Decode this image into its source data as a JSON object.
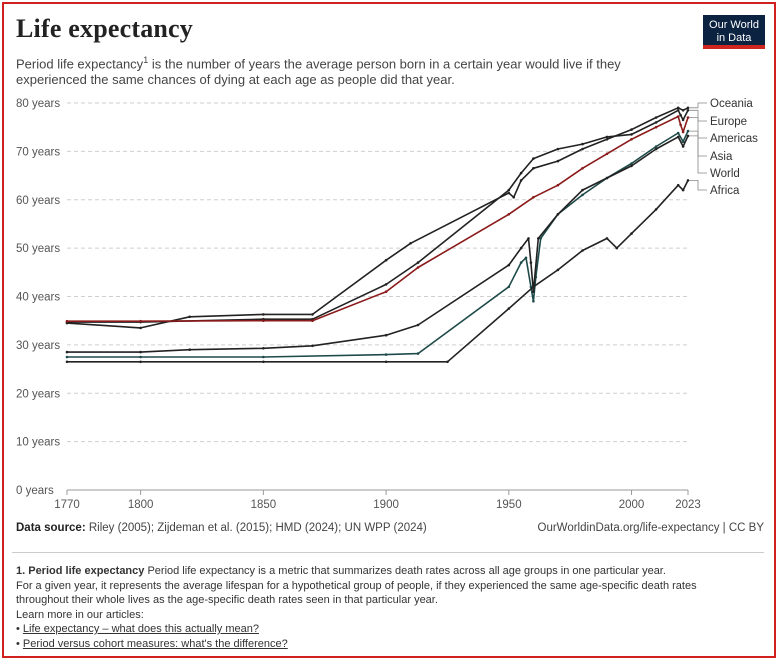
{
  "header": {
    "title": "Life expectancy",
    "subtitle_main": "Period life expectancy",
    "subtitle_mark": "1",
    "subtitle_rest": " is the number of years the average person born in a certain year would live if they experienced the same chances of dying at each age as people did that year.",
    "logo_line1": "Our World",
    "logo_line2": "in Data"
  },
  "footer": {
    "source_label": "Data source:",
    "source_text": " Riley (2005); Zijdeman et al. (2015); HMD (2024); UN WPP (2024)",
    "url_text": "OurWorldinData.org/life-expectancy | CC BY"
  },
  "notes": {
    "heading": "1. Period life expectancy",
    "line1_rest": " Period life expectancy is a metric that summarizes death rates across all age groups in one particular year.",
    "line2": "For a given year, it represents the average lifespan for a hypothetical group of people, if they experienced the same age-specific death rates",
    "line3": "throughout their whole lives as the age-specific death rates seen in that particular year.",
    "line4": "Learn more in our articles:",
    "links": [
      "Life expectancy – what does this actually mean?",
      "Period versus cohort measures: what's the difference?"
    ]
  },
  "chart_data": {
    "type": "line",
    "title": "Life expectancy",
    "xlabel": "",
    "ylabel": "",
    "xlim": [
      1770,
      2023
    ],
    "ylim": [
      0,
      80
    ],
    "y_ticks": [
      0,
      10,
      20,
      30,
      40,
      50,
      60,
      70,
      80
    ],
    "y_tick_labels": [
      "0 years",
      "10 years",
      "20 years",
      "30 years",
      "40 years",
      "50 years",
      "60 years",
      "70 years",
      "80 years"
    ],
    "x_ticks": [
      1770,
      1800,
      1850,
      1900,
      1950,
      2000,
      2023
    ],
    "x_tick_labels": [
      "1770",
      "1800",
      "1850",
      "1900",
      "1950",
      "2000",
      "2023"
    ],
    "grid": "horizontal dashed",
    "legend_position": "right, at line ends",
    "series": [
      {
        "name": "Oceania",
        "color": "#222222",
        "x": [
          1770,
          1800,
          1820,
          1850,
          1870,
          1900,
          1910,
          1950,
          1952,
          1955,
          1960,
          1970,
          1980,
          1990,
          2000,
          2010,
          2019,
          2021,
          2023
        ],
        "y": [
          34.5,
          33.5,
          35.8,
          36.3,
          36.3,
          47.5,
          51.0,
          61.4,
          60.5,
          64.0,
          66.5,
          68.0,
          70.5,
          72.5,
          74.5,
          77.0,
          79.0,
          78.5,
          79.0
        ]
      },
      {
        "name": "Europe",
        "color": "#222222",
        "x": [
          1770,
          1800,
          1850,
          1870,
          1900,
          1913,
          1950,
          1955,
          1960,
          1970,
          1980,
          1990,
          2000,
          2010,
          2019,
          2020,
          2021,
          2023
        ],
        "y": [
          34.7,
          34.7,
          35.3,
          35.3,
          42.5,
          47.0,
          62.0,
          65.5,
          68.5,
          70.5,
          71.5,
          73.0,
          73.5,
          76.0,
          78.5,
          77.5,
          76.5,
          78.5
        ]
      },
      {
        "name": "Americas",
        "color": "#8b1a1a",
        "x": [
          1770,
          1800,
          1850,
          1870,
          1900,
          1913,
          1950,
          1960,
          1970,
          1980,
          1990,
          2000,
          2010,
          2019,
          2020,
          2021,
          2023
        ],
        "y": [
          34.9,
          34.9,
          35.0,
          35.0,
          41.0,
          46.0,
          57.0,
          60.5,
          63.0,
          66.5,
          69.5,
          72.5,
          75.0,
          77.2,
          75.5,
          74.0,
          77.0
        ]
      },
      {
        "name": "Asia",
        "color": "#1f4a4a",
        "x": [
          1770,
          1800,
          1850,
          1900,
          1913,
          1950,
          1955,
          1957,
          1959,
          1960,
          1961,
          1963,
          1970,
          1980,
          1990,
          2000,
          2010,
          2019,
          2021,
          2023
        ],
        "y": [
          27.5,
          27.5,
          27.5,
          28.0,
          28.2,
          42.0,
          47.0,
          48.0,
          42.0,
          39.0,
          44.0,
          52.0,
          57.0,
          61.0,
          64.5,
          67.5,
          71.0,
          73.8,
          72.0,
          74.2
        ]
      },
      {
        "name": "World",
        "color": "#222222",
        "x": [
          1770,
          1800,
          1820,
          1850,
          1870,
          1900,
          1913,
          1950,
          1955,
          1958,
          1959,
          1960,
          1962,
          1970,
          1980,
          1990,
          2000,
          2010,
          2019,
          2021,
          2023
        ],
        "y": [
          28.5,
          28.5,
          29.0,
          29.3,
          29.8,
          32.0,
          34.1,
          46.5,
          50.0,
          52.0,
          47.0,
          41.0,
          52.0,
          57.0,
          62.0,
          64.5,
          67.0,
          70.5,
          73.0,
          71.0,
          73.2
        ]
      },
      {
        "name": "Africa",
        "color": "#222222",
        "x": [
          1770,
          1800,
          1850,
          1900,
          1925,
          1950,
          1960,
          1970,
          1980,
          1990,
          1994,
          2000,
          2010,
          2019,
          2021,
          2023
        ],
        "y": [
          26.5,
          26.5,
          26.5,
          26.5,
          26.5,
          37.5,
          42.0,
          45.5,
          49.5,
          52.0,
          50.0,
          53.0,
          58.0,
          63.0,
          62.0,
          64.0
        ]
      }
    ]
  }
}
